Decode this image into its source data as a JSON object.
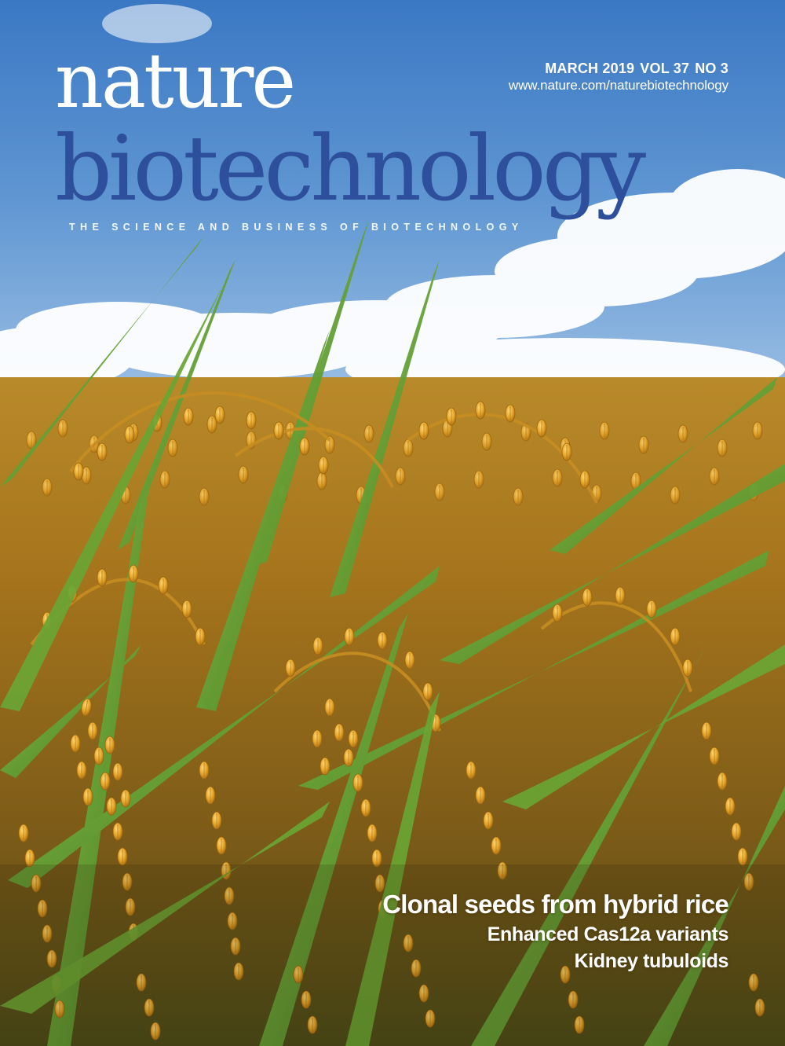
{
  "masthead": {
    "brand_primary": "nature",
    "brand_secondary": "biotechnology",
    "tagline": "THE SCIENCE AND BUSINESS OF BIOTECHNOLOGY",
    "issue": {
      "date": "MARCH 2019",
      "volume": "VOL 37",
      "number": "NO 3"
    },
    "url": "www.nature.com/naturebiotechnology"
  },
  "cover_lines": {
    "headline": "Clonal seeds from hybrid rice",
    "secondary": [
      "Enhanced Cas12a variants",
      "Kidney tubuloids"
    ]
  },
  "colors": {
    "brand_blue": "#2e4f9c",
    "sky_blue": "#4a86c9",
    "grain_gold": "#e2a62a",
    "leaf_green": "#5f9a2e"
  },
  "image": {
    "subject": "rice-field-with-ripe-golden-panicles-under-blue-sky"
  }
}
